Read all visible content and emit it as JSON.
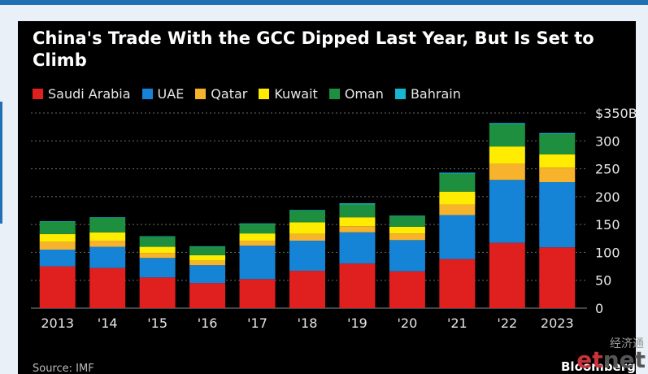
{
  "chart_data": {
    "type": "bar",
    "stacked": true,
    "title": "China's Trade With the GCC Dipped Last Year, But Is Set to Climb",
    "categories": [
      "2013",
      "'14",
      "'15",
      "'16",
      "'17",
      "'18",
      "'19",
      "'20",
      "'21",
      "'22",
      "2023"
    ],
    "series": [
      {
        "name": "Saudi Arabia",
        "color": "#e0201f",
        "values": [
          75,
          72,
          55,
          45,
          52,
          67,
          80,
          66,
          88,
          117,
          109
        ]
      },
      {
        "name": "UAE",
        "color": "#1583d6",
        "values": [
          30,
          38,
          35,
          32,
          60,
          54,
          56,
          56,
          79,
          113,
          117
        ]
      },
      {
        "name": "Qatar",
        "color": "#f7b32b",
        "values": [
          14,
          11,
          9,
          8,
          9,
          12,
          11,
          12,
          19,
          29,
          26
        ]
      },
      {
        "name": "Kuwait",
        "color": "#ffec00",
        "values": [
          14,
          15,
          11,
          10,
          13,
          21,
          16,
          12,
          23,
          31,
          24
        ]
      },
      {
        "name": "Oman",
        "color": "#1e8f3e",
        "values": [
          22,
          26,
          18,
          15,
          17,
          21,
          23,
          19,
          32,
          40,
          36
        ]
      },
      {
        "name": "Bahrain",
        "color": "#16b6d2",
        "values": [
          1,
          1,
          1,
          1,
          1,
          1,
          2,
          1,
          2,
          2,
          2
        ]
      }
    ],
    "yticks": [
      0,
      50,
      100,
      150,
      200,
      250,
      300,
      350
    ],
    "ytick_labels": [
      "0",
      "50",
      "100",
      "150",
      "200",
      "250",
      "300",
      "$350B"
    ],
    "ylim": [
      0,
      350
    ],
    "grid": "dotted horizontal",
    "legend_position": "top-left"
  },
  "source": "Source: IMF",
  "brand": "Bloomberg",
  "watermark": {
    "cn": "经济通",
    "logo_e": "e",
    "logo_t": "t",
    "logo_net": "net"
  }
}
